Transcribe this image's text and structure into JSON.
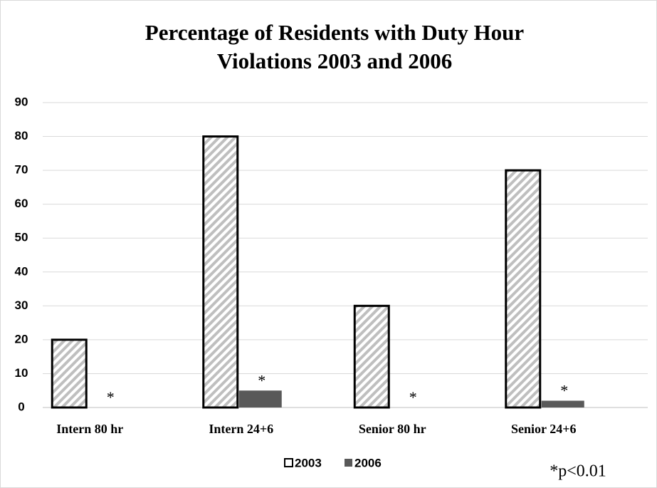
{
  "chart_data": {
    "type": "bar",
    "title": "Percentage of Residents with Duty Hour Violations 2003 and 2006",
    "categories": [
      "Intern 80 hr",
      "Intern 24+6",
      "Senior 80 hr",
      "Senior 24+6"
    ],
    "series": [
      {
        "name": "2003",
        "color": "#bfbfbf",
        "pattern": "hatch",
        "values": [
          20,
          80,
          30,
          70
        ]
      },
      {
        "name": "2006",
        "color": "#595959",
        "values": [
          0,
          5,
          0,
          2
        ]
      }
    ],
    "annotations": [
      "*",
      "*",
      "*",
      "*"
    ],
    "footnote": "*p<0.01",
    "ylim": [
      0,
      90
    ],
    "yticks": [
      0,
      10,
      20,
      30,
      40,
      50,
      60,
      70,
      80,
      90
    ],
    "grid": true,
    "legend": "bottom"
  }
}
